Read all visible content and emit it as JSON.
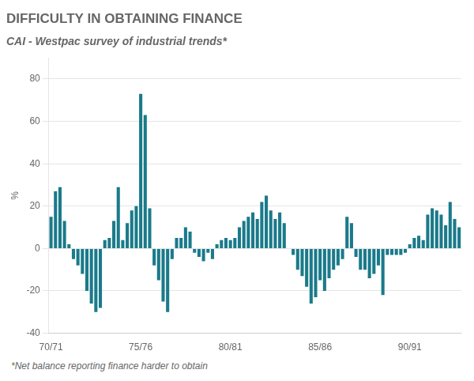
{
  "chart_data": {
    "type": "bar",
    "title": "DIFFICULTY IN OBTAINING FINANCE",
    "subtitle": "CAI - Westpac survey of industrial trends*",
    "y_label": "%",
    "annotations": [
      "*Net balance reporting finance harder to obtain"
    ],
    "categories": [
      "70/71",
      null,
      null,
      null,
      null,
      null,
      null,
      null,
      null,
      null,
      null,
      null,
      null,
      null,
      null,
      null,
      null,
      null,
      null,
      null,
      "75/76",
      null,
      null,
      null,
      null,
      null,
      null,
      null,
      null,
      null,
      null,
      null,
      null,
      null,
      null,
      null,
      null,
      null,
      null,
      null,
      "80/81",
      null,
      null,
      null,
      null,
      null,
      null,
      null,
      null,
      null,
      null,
      null,
      null,
      null,
      null,
      null,
      null,
      null,
      null,
      null,
      "85/86",
      null,
      null,
      null,
      null,
      null,
      null,
      null,
      null,
      null,
      null,
      null,
      null,
      null,
      null,
      null,
      null,
      null,
      null,
      null,
      "90/91",
      null,
      null,
      null,
      null,
      null,
      null,
      null,
      null,
      null,
      null,
      null
    ],
    "values": [
      15,
      27,
      29,
      13,
      2,
      -5,
      -8,
      -12,
      -20,
      -26,
      -30,
      -28,
      4,
      5,
      13,
      29,
      4,
      12,
      18,
      20,
      73,
      63,
      19,
      -8,
      -15,
      -25,
      -30,
      -5,
      5,
      5,
      10,
      8,
      -2,
      -4,
      -6,
      -2,
      -5,
      2,
      4,
      5,
      4,
      5,
      10,
      13,
      15,
      17,
      14,
      22,
      25,
      18,
      14,
      17,
      12,
      0,
      -3,
      -10,
      -13,
      -18,
      -26,
      -23,
      -15,
      -20,
      -14,
      -10,
      -8,
      -5,
      15,
      12,
      -4,
      -10,
      -10,
      -14,
      -12,
      -8,
      -22,
      -3,
      -3,
      -3,
      -3,
      -2,
      2,
      5,
      6,
      4,
      16,
      19,
      18,
      16,
      11,
      22,
      14,
      10
    ],
    "color": "#1A7A8A",
    "ylim": [
      -40,
      90
    ],
    "yticks": [
      -40,
      -20,
      0,
      20,
      40,
      60,
      80
    ],
    "grid": true
  }
}
